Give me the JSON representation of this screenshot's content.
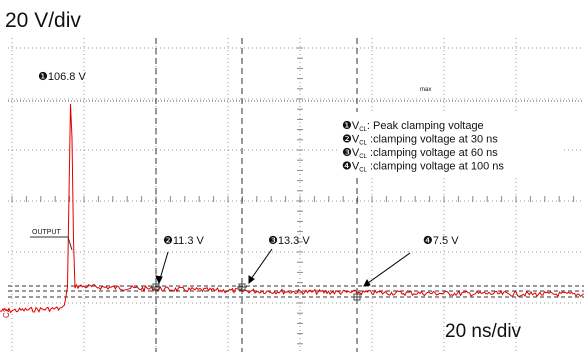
{
  "header": {
    "vertical_scale": "20 V/div",
    "horizontal_scale": "20 ns/div"
  },
  "labels": {
    "output": "OUTPUT",
    "max": "max",
    "channel": "C2"
  },
  "annotations": [
    {
      "marker": "❶",
      "text": "106.8 V"
    },
    {
      "marker": "❷",
      "text": "11.3 V"
    },
    {
      "marker": "❸",
      "text": "13.3 V"
    },
    {
      "marker": "❹",
      "text": "7.5 V"
    }
  ],
  "legend": [
    {
      "marker": "❶",
      "symbol": "V",
      "subscript": "CL",
      "text": ": Peak clamping  voltage"
    },
    {
      "marker": "❷",
      "symbol": "V",
      "subscript": "CL",
      "text": " :clamping voltage at 30 ns"
    },
    {
      "marker": "❸",
      "symbol": "V",
      "subscript": "CL",
      "text": " :clamping voltage at 60 ns"
    },
    {
      "marker": "❹",
      "symbol": "V",
      "subscript": "CL",
      "text": " :clamping voltage at 100 ns"
    }
  ]
}
